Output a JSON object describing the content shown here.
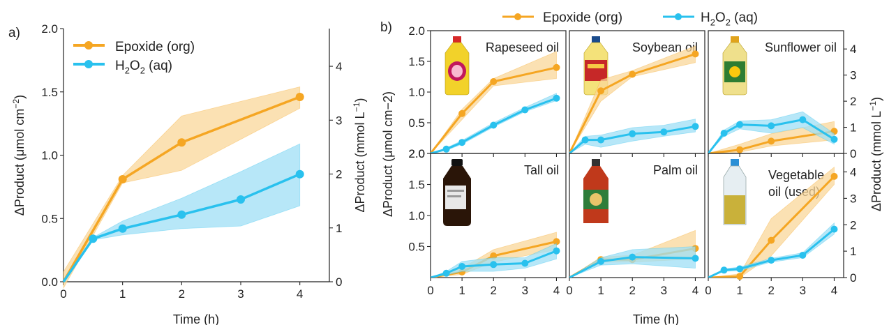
{
  "colors": {
    "epoxide": "#f5a623",
    "epoxide_band": "#f9d79a",
    "h2o2": "#29c1ee",
    "h2o2_band": "#9fdff5",
    "axis": "#222222"
  },
  "legend": {
    "epoxide_label": "Epoxide (org)",
    "h2o2_label_parts": [
      "H",
      "2",
      "O",
      "2",
      " (aq)"
    ]
  },
  "panel_a": {
    "letter": "a)",
    "xlabel": "Time (h)",
    "ylabel_left_parts": [
      "ΔProduct (μmol cm",
      "−2",
      ")"
    ],
    "ylabel_right_parts": [
      "ΔProduct (mmol L",
      "−1",
      ")"
    ]
  },
  "panel_b": {
    "letter": "b)",
    "xlabel": "Time (h)",
    "ylabel_left": "ΔProduct (μmol cm−2)",
    "ylabel_right_parts": [
      "ΔProduct (mmol L",
      "−1",
      ")"
    ]
  },
  "chart_data": [
    {
      "type": "line",
      "panel": "a",
      "x_ticks": [
        0,
        1,
        2,
        3,
        4
      ],
      "xlim": [
        0,
        4.5
      ],
      "left_ticks": [
        "0.0",
        "0.5",
        "1.0",
        "1.5",
        "2.0"
      ],
      "ylim_left": [
        0,
        2.0
      ],
      "right_ticks": [
        "0",
        "1",
        "2",
        "3",
        "4"
      ],
      "ylim_right": [
        0,
        4.7
      ],
      "series": [
        {
          "name": "Epoxide (org)",
          "x": [
            0,
            1,
            2,
            4
          ],
          "y": [
            0,
            0.81,
            1.1,
            1.46
          ],
          "band_low": [
            -0.05,
            0.78,
            0.88,
            1.37
          ],
          "band_high": [
            0.08,
            0.84,
            1.31,
            1.54
          ]
        },
        {
          "name": "H2O2 (aq)",
          "x": [
            0,
            0.5,
            1,
            2,
            3,
            4
          ],
          "y": [
            0,
            0.34,
            0.42,
            0.53,
            0.65,
            0.85
          ],
          "band_low": [
            0,
            0.33,
            0.37,
            0.42,
            0.44,
            0.6
          ],
          "band_high": [
            0,
            0.35,
            0.48,
            0.66,
            0.87,
            1.09
          ]
        }
      ]
    },
    {
      "type": "line",
      "panel": "b",
      "x_ticks": [
        0,
        1,
        2,
        3,
        4
      ],
      "xlim": [
        0,
        4.3
      ],
      "top_left_ticks": [
        "0.5",
        "1.0",
        "1.5",
        "2.0"
      ],
      "bottom_left_ticks": [
        "0.5",
        "1.0",
        "1.5",
        "2.0"
      ],
      "ylim_left": [
        0,
        2.0
      ],
      "right_ticks": [
        "0",
        "1",
        "2",
        "3",
        "4"
      ],
      "ylim_right": [
        0,
        4.7
      ],
      "subplots": [
        {
          "title": "Rapeseed oil",
          "series": [
            {
              "name": "Epoxide (org)",
              "x": [
                0,
                1,
                2,
                4
              ],
              "y": [
                0,
                0.65,
                1.17,
                1.4
              ],
              "band_low": [
                0,
                0.55,
                1.1,
                1.22
              ],
              "band_high": [
                0,
                0.72,
                1.22,
                1.66
              ]
            },
            {
              "name": "H2O2 (aq)",
              "x": [
                0,
                0.5,
                1,
                2,
                3,
                4
              ],
              "y": [
                0,
                0.07,
                0.18,
                0.46,
                0.71,
                0.9
              ],
              "band_low": [
                0,
                0.05,
                0.15,
                0.43,
                0.68,
                0.86
              ],
              "band_high": [
                0,
                0.09,
                0.21,
                0.5,
                0.75,
                0.98
              ]
            }
          ]
        },
        {
          "title": "Soybean oil",
          "series": [
            {
              "name": "Epoxide (org)",
              "x": [
                0,
                1,
                2,
                4
              ],
              "y": [
                0,
                1.02,
                1.29,
                1.62
              ],
              "band_low": [
                0,
                0.85,
                1.25,
                1.48
              ],
              "band_high": [
                0,
                1.2,
                1.35,
                1.75
              ]
            },
            {
              "name": "H2O2 (aq)",
              "x": [
                0,
                0.5,
                1,
                2,
                3,
                4
              ],
              "y": [
                0,
                0.22,
                0.22,
                0.32,
                0.35,
                0.44
              ],
              "band_low": [
                0,
                0.15,
                0.1,
                0.2,
                0.28,
                0.35
              ],
              "band_high": [
                0,
                0.28,
                0.3,
                0.42,
                0.46,
                0.56
              ]
            }
          ]
        },
        {
          "title": "Sunflower oil",
          "series": [
            {
              "name": "Epoxide (org)",
              "x": [
                0,
                1,
                2,
                4
              ],
              "y": [
                0,
                0.06,
                0.2,
                0.36
              ],
              "band_low": [
                0,
                0.02,
                0.12,
                0.22
              ],
              "band_high": [
                0,
                0.15,
                0.32,
                0.52
              ]
            },
            {
              "name": "H2O2 (aq)",
              "x": [
                0,
                0.5,
                1,
                2,
                3,
                4
              ],
              "y": [
                0,
                0.33,
                0.47,
                0.45,
                0.55,
                0.23
              ],
              "band_low": [
                0,
                0.28,
                0.4,
                0.33,
                0.42,
                0.15
              ],
              "band_high": [
                0,
                0.38,
                0.53,
                0.55,
                0.68,
                0.32
              ]
            }
          ]
        },
        {
          "title": "Tall oil",
          "series": [
            {
              "name": "Epoxide (org)",
              "x": [
                0,
                1,
                2,
                4
              ],
              "y": [
                0,
                0.09,
                0.35,
                0.58
              ],
              "band_low": [
                0,
                0.05,
                0.25,
                0.45
              ],
              "band_high": [
                0,
                0.15,
                0.45,
                0.73
              ]
            },
            {
              "name": "H2O2 (aq)",
              "x": [
                0,
                0.5,
                1,
                2,
                3,
                4
              ],
              "y": [
                0,
                0.07,
                0.18,
                0.21,
                0.23,
                0.43
              ],
              "band_low": [
                0,
                0.04,
                0.1,
                0.1,
                0.15,
                0.3
              ],
              "band_high": [
                0,
                0.1,
                0.26,
                0.32,
                0.32,
                0.55
              ]
            }
          ]
        },
        {
          "title": "Palm oil",
          "series": [
            {
              "name": "Epoxide (org)",
              "x": [
                0,
                1,
                2,
                4
              ],
              "y": [
                0,
                0.29,
                0.29,
                0.47
              ],
              "band_low": [
                0,
                0.25,
                0.25,
                0.3
              ],
              "band_high": [
                0,
                0.33,
                0.36,
                0.76
              ]
            },
            {
              "name": "H2O2 (aq)",
              "x": [
                0,
                1,
                2,
                4
              ],
              "y": [
                0,
                0.26,
                0.33,
                0.31
              ],
              "band_low": [
                0,
                0.2,
                0.22,
                0.15
              ],
              "band_high": [
                0,
                0.32,
                0.45,
                0.5
              ]
            }
          ]
        },
        {
          "title": "Vegetable oil (used)",
          "title_lines": [
            "Vegetable",
            "oil (used)"
          ],
          "series": [
            {
              "name": "Epoxide (org)",
              "x": [
                0,
                1,
                2,
                4
              ],
              "y": [
                0,
                0.02,
                0.6,
                1.63
              ],
              "band_low": [
                0,
                0.0,
                0.35,
                1.5
              ],
              "band_high": [
                0,
                0.06,
                0.95,
                1.78
              ]
            },
            {
              "name": "H2O2 (aq)",
              "x": [
                0,
                0.5,
                1,
                2,
                3,
                4
              ],
              "y": [
                0,
                0.12,
                0.14,
                0.28,
                0.36,
                0.78
              ],
              "band_low": [
                0,
                0.1,
                0.11,
                0.25,
                0.32,
                0.7
              ],
              "band_high": [
                0,
                0.14,
                0.17,
                0.31,
                0.4,
                0.88
              ]
            }
          ]
        }
      ]
    }
  ]
}
